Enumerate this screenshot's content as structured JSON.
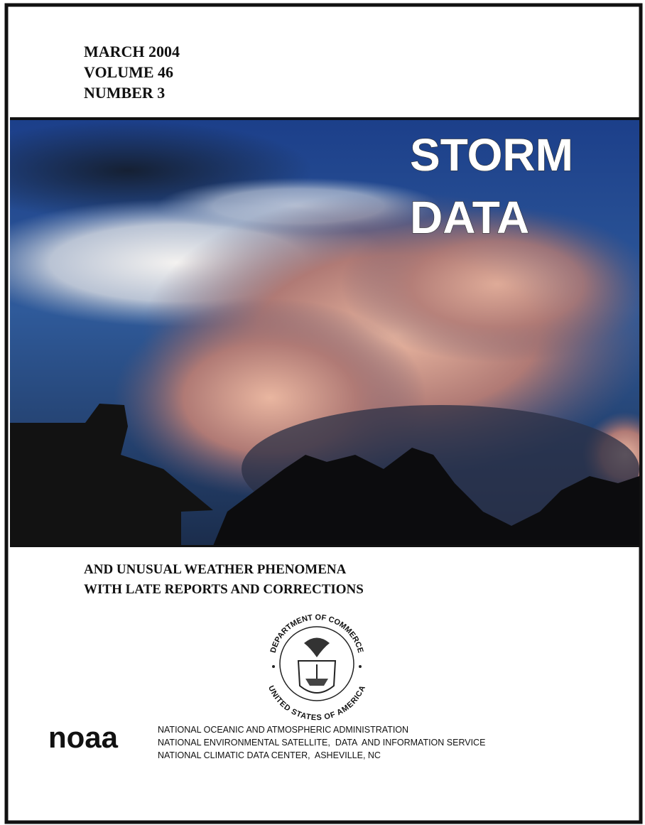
{
  "header": {
    "lines": [
      "MARCH 2004",
      "VOLUME 46",
      "NUMBER 3"
    ]
  },
  "title": {
    "lines": [
      "STORM",
      "DATA"
    ]
  },
  "subtitle": {
    "lines": [
      "AND UNUSUAL WEATHER PHENOMENA",
      "WITH LATE REPORTS AND CORRECTIONS"
    ]
  },
  "seal": {
    "top_text": "DEPARTMENT OF COMMERCE",
    "bottom_text": "UNITED STATES OF AMERICA"
  },
  "logo": {
    "text": "noaa"
  },
  "agency": {
    "lines": [
      "NATIONAL OCEANIC AND ATMOSPHERIC ADMINISTRATION",
      "NATIONAL ENVIRONMENTAL SATELLITE,  DATA  AND INFORMATION SERVICE",
      "NATIONAL CLIMATIC DATA CENTER,  ASHEVILLE, NC"
    ]
  }
}
